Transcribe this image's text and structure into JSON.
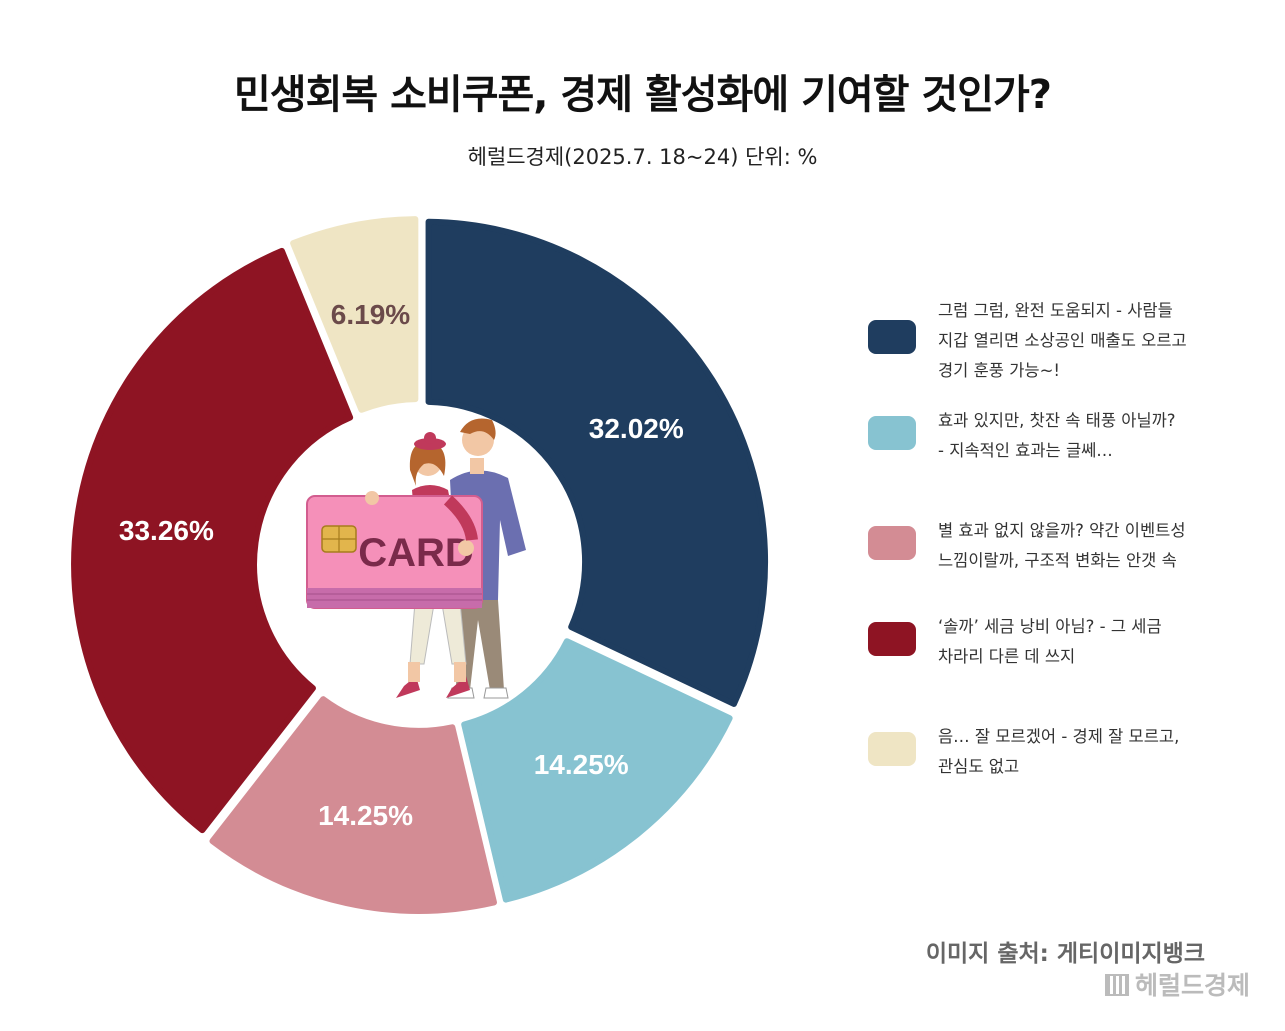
{
  "header": {
    "title": "민생회복 소비쿠폰, 경제 활성화에 기여할 것인가?",
    "subtitle": "헤럴드경제(2025.7. 18~24) 단위: %"
  },
  "chart_data": {
    "type": "pie",
    "variant": "donut",
    "unit": "%",
    "slices": [
      {
        "label": "그럼 그럼, 완전 도움되지 - 사람들 지갑 열리면 소상공인 매출도 오르고 경기 훈풍 가능~!",
        "value": 32.02,
        "display": "32.02%",
        "color": "#1f3d5f"
      },
      {
        "label": "효과 있지만, 찻잔 속 태풍 아닐까? - 지속적인 효과는 글쎄…",
        "value": 14.25,
        "display": "14.25%",
        "color": "#87c3d1"
      },
      {
        "label": "별 효과 없지 않을까? 약간 이벤트성 느낌이랄까, 구조적 변화는 안갯 속",
        "value": 14.25,
        "display": "14.25%",
        "color": "#d38c94"
      },
      {
        "label": "'솔까' 세금 낭비 아님? - 그 세금 차라리 다른 데 쓰지",
        "value": 33.26,
        "display": "33.26%",
        "color": "#8e1423"
      },
      {
        "label": "음… 잘 모르겠어 - 경제 잘 모르고, 관심도 없고",
        "value": 6.19,
        "display": "6.19%",
        "color": "#efe5c4"
      }
    ],
    "legend_position": "right"
  },
  "legend": [
    {
      "lines": [
        "그럼 그럼, 완전 도움되지 - 사람들",
        "지갑 열리면 소상공인 매출도 오르고",
        "경기 훈풍 가능~!"
      ],
      "color": "#1f3d5f"
    },
    {
      "lines": [
        "효과 있지만, 찻잔 속 태풍 아닐까?",
        "- 지속적인 효과는 글쎄…"
      ],
      "color": "#87c3d1"
    },
    {
      "lines": [
        "별 효과 없지 않을까? 약간 이벤트성",
        "느낌이랄까, 구조적 변화는 안갯 속"
      ],
      "color": "#d38c94"
    },
    {
      "lines": [
        "‘솔까’ 세금 낭비 아님? - 그 세금",
        "차라리 다른 데 쓰지"
      ],
      "color": "#8e1423"
    },
    {
      "lines": [
        "음… 잘 모르겠어 - 경제 잘 모르고,",
        "관심도 없고"
      ],
      "color": "#efe5c4"
    }
  ],
  "illustration": {
    "card_text": "CARD",
    "icon": "couple-holding-card-icon"
  },
  "footer": {
    "credit": "이미지 출처: 게티이미지뱅크",
    "watermark": "헤럴드경제"
  }
}
